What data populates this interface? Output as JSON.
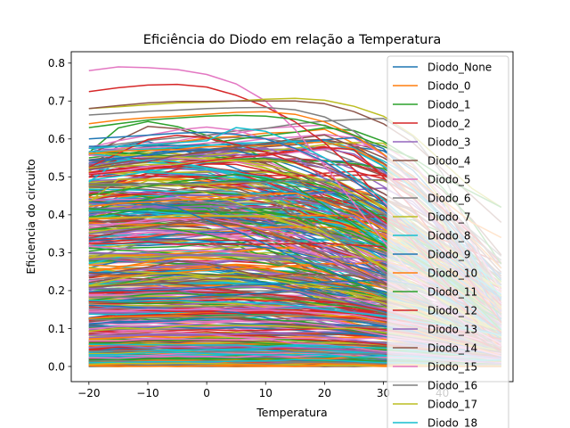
{
  "chart_data": {
    "type": "line",
    "title": "Eficiência do Diodo em relação a Temperatura",
    "xlabel": "Temperatura",
    "ylabel": "Eficiencia do circuito",
    "xlim": [
      -23,
      52
    ],
    "ylim": [
      -0.04,
      0.83
    ],
    "x": [
      -20,
      -15,
      -10,
      -5,
      0,
      5,
      10,
      15,
      20,
      25,
      30,
      35,
      40,
      45,
      50
    ],
    "xticks": [
      -20,
      -10,
      0,
      10,
      20,
      30,
      40
    ],
    "xtick_labels": [
      "−20",
      "−10",
      "0",
      "10",
      "20",
      "30",
      "40"
    ],
    "yticks": [
      0.0,
      0.1,
      0.2,
      0.3,
      0.4,
      0.5,
      0.6,
      0.7,
      0.8
    ],
    "ytick_labels": [
      "0.0",
      "0.1",
      "0.2",
      "0.3",
      "0.4",
      "0.5",
      "0.6",
      "0.7",
      "0.8"
    ],
    "grid": false,
    "legend_position": "right, overflowing below the plot",
    "legend": [
      "Diodo_None",
      "Diodo_0",
      "Diodo_1",
      "Diodo_2",
      "Diodo_3",
      "Diodo_4",
      "Diodo_5",
      "Diodo_6",
      "Diodo_7",
      "Diodo_8",
      "Diodo_9",
      "Diodo_10",
      "Diodo_11",
      "Diodo_12",
      "Diodo_13",
      "Diodo_14",
      "Diodo_15",
      "Diodo_16",
      "Diodo_17",
      "Diodo_18"
    ],
    "colors": [
      "#1f77b4",
      "#ff7f0e",
      "#2ca02c",
      "#d62728",
      "#9467bd",
      "#8c564b",
      "#e377c2",
      "#7f7f7f",
      "#bcbd22",
      "#17becf"
    ],
    "highlighted_series": [
      {
        "values": [
          0.78,
          0.79,
          0.788,
          0.783,
          0.77,
          0.745,
          0.7,
          0.625,
          0.53,
          0.43,
          0.33,
          0.24,
          0.16,
          0.1,
          0.06
        ],
        "color": "#e377c2"
      },
      {
        "values": [
          0.725,
          0.735,
          0.742,
          0.744,
          0.737,
          0.715,
          0.685,
          0.645,
          0.59,
          0.52,
          0.43,
          0.33,
          0.23,
          0.15,
          0.09
        ],
        "color": "#d62728"
      },
      {
        "values": [
          0.68,
          0.685,
          0.69,
          0.695,
          0.697,
          0.7,
          0.705,
          0.707,
          0.702,
          0.686,
          0.66,
          0.61,
          0.54,
          0.47,
          0.42
        ],
        "color": "#bcbd22"
      },
      {
        "values": [
          0.68,
          0.688,
          0.695,
          0.699,
          0.699,
          0.7,
          0.7,
          0.7,
          0.693,
          0.672,
          0.64,
          0.59,
          0.52,
          0.45,
          0.38
        ],
        "color": "#8c564b"
      },
      {
        "values": [
          0.663,
          0.668,
          0.673,
          0.676,
          0.68,
          0.682,
          0.683,
          0.677,
          0.658,
          0.62,
          0.56,
          0.49,
          0.41,
          0.34,
          0.28
        ],
        "color": "#7f7f7f"
      },
      {
        "values": [
          0.64,
          0.65,
          0.656,
          0.66,
          0.665,
          0.67,
          0.672,
          0.665,
          0.645,
          0.61,
          0.56,
          0.5,
          0.44,
          0.38,
          0.34
        ],
        "color": "#ff7f0e"
      },
      {
        "values": [
          0.63,
          0.64,
          0.65,
          0.655,
          0.66,
          0.662,
          0.66,
          0.652,
          0.635,
          0.61,
          0.58,
          0.55,
          0.5,
          0.46,
          0.42
        ],
        "color": "#2ca02c"
      },
      {
        "values": [
          0.6,
          0.605,
          0.61,
          0.615,
          0.618,
          0.612,
          0.6,
          0.575,
          0.54,
          0.49,
          0.43,
          0.36,
          0.29,
          0.23,
          0.18
        ],
        "color": "#1f77b4"
      },
      {
        "values": [
          0.575,
          0.58,
          0.585,
          0.59,
          0.595,
          0.63,
          0.62,
          0.59,
          0.55,
          0.5,
          0.44,
          0.37,
          0.3,
          0.24,
          0.19
        ],
        "color": "#17becf"
      }
    ],
    "bulk_series": {
      "count": 460,
      "start_range": [
        0.0,
        0.58
      ],
      "note": "dense band of diode efficiency curves, many peaking near 0–15 and falling toward 0 by 50"
    }
  }
}
